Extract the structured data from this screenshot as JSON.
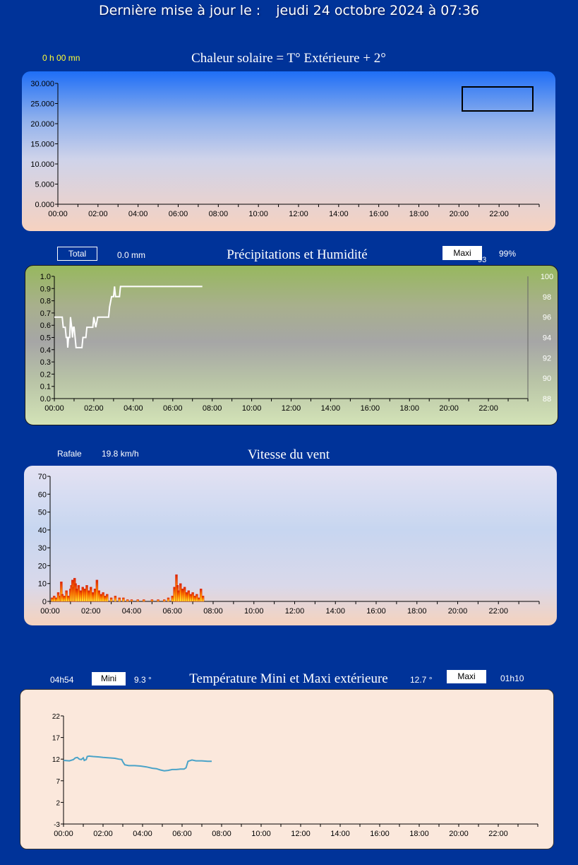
{
  "header": {
    "label": "Dernière mise à jour le :",
    "datetime": "jeudi 24 octobre 2024 à 07:36"
  },
  "solar": {
    "sunshine_duration": "0 h 00 mn"
  },
  "precip": {
    "total_label": "Total",
    "total_value": "0.0 mm",
    "maxi_label": "Maxi",
    "maxi_overlap": "93",
    "maxi_value": "99%"
  },
  "wind": {
    "gust_label": "Rafale",
    "gust_value": "19.8 km/h"
  },
  "temp": {
    "min_time": "04h54",
    "min_label": "Mini",
    "min_value": "9.3 °",
    "max_value": "12.7 °",
    "max_label": "Maxi",
    "max_time": "01h10"
  },
  "chart_data": [
    {
      "type": "line",
      "title": "Chaleur solaire = T° Extérieure + 2°",
      "x_ticks": [
        "00:00",
        "02:00",
        "04:00",
        "06:00",
        "08:00",
        "10:00",
        "12:00",
        "14:00",
        "16:00",
        "18:00",
        "20:00",
        "22:00"
      ],
      "y_ticks": [
        "0.000",
        "5.000",
        "10.000",
        "15.000",
        "20.000",
        "25.000",
        "30.000"
      ],
      "ylim": [
        0,
        30
      ],
      "series": [],
      "legend_box": "top-right",
      "colors": {
        "gradient_top": "#1e6ef7",
        "gradient_bottom": "#f6d2c0"
      }
    },
    {
      "type": "line",
      "title": "Précipitations et Humidité",
      "x_ticks": [
        "00:00",
        "02:00",
        "04:00",
        "06:00",
        "08:00",
        "10:00",
        "12:00",
        "14:00",
        "16:00",
        "18:00",
        "20:00",
        "22:00"
      ],
      "y_ticks": [
        "0.0",
        "0.1",
        "0.2",
        "0.3",
        "0.4",
        "0.5",
        "0.6",
        "0.7",
        "0.8",
        "0.9",
        "1.0"
      ],
      "ylim": [
        0,
        1
      ],
      "y2_ticks": [
        "88",
        "90",
        "92",
        "94",
        "96",
        "98",
        "100"
      ],
      "y2lim": [
        88,
        100
      ],
      "series": [
        {
          "axis": "right",
          "color": "#ffffff",
          "points": [
            [
              0,
              96
            ],
            [
              0.4,
              96
            ],
            [
              0.45,
              95
            ],
            [
              0.55,
              95
            ],
            [
              0.6,
              94
            ],
            [
              0.65,
              94
            ],
            [
              0.68,
              93
            ],
            [
              0.72,
              94
            ],
            [
              0.78,
              94
            ],
            [
              0.82,
              96
            ],
            [
              0.88,
              95
            ],
            [
              0.92,
              94
            ],
            [
              0.96,
              95
            ],
            [
              1.0,
              95
            ],
            [
              1.05,
              94
            ],
            [
              1.1,
              93
            ],
            [
              1.4,
              93
            ],
            [
              1.45,
              94
            ],
            [
              1.6,
              94
            ],
            [
              1.65,
              95
            ],
            [
              1.95,
              95
            ],
            [
              2.0,
              96
            ],
            [
              2.1,
              95
            ],
            [
              2.2,
              96
            ],
            [
              2.75,
              96
            ],
            [
              2.8,
              97
            ],
            [
              2.9,
              98
            ],
            [
              3.0,
              98
            ],
            [
              3.05,
              99
            ],
            [
              3.1,
              98
            ],
            [
              3.3,
              98
            ],
            [
              3.35,
              99
            ],
            [
              7.5,
              99
            ]
          ]
        }
      ]
    },
    {
      "type": "bar",
      "title": "Vitesse du vent",
      "x_ticks": [
        "00:00",
        "02:00",
        "04:00",
        "06:00",
        "08:00",
        "10:00",
        "12:00",
        "14:00",
        "16:00",
        "18:00",
        "20:00",
        "22:00"
      ],
      "y_ticks": [
        "0",
        "10",
        "20",
        "30",
        "40",
        "50",
        "60",
        "70"
      ],
      "ylim": [
        0,
        70
      ],
      "series": [
        {
          "name": "",
          "color": "#dd2200",
          "points": [
            [
              0.1,
              2
            ],
            [
              0.2,
              3
            ],
            [
              0.3,
              2
            ],
            [
              0.4,
              5
            ],
            [
              0.5,
              3
            ],
            [
              0.55,
              11
            ],
            [
              0.6,
              4
            ],
            [
              0.7,
              3
            ],
            [
              0.8,
              6
            ],
            [
              0.9,
              3
            ],
            [
              1.0,
              7
            ],
            [
              1.05,
              9
            ],
            [
              1.1,
              12
            ],
            [
              1.15,
              8
            ],
            [
              1.2,
              13
            ],
            [
              1.25,
              10
            ],
            [
              1.3,
              7
            ],
            [
              1.4,
              9
            ],
            [
              1.5,
              6
            ],
            [
              1.6,
              8
            ],
            [
              1.7,
              7
            ],
            [
              1.8,
              9
            ],
            [
              1.9,
              6
            ],
            [
              2.0,
              8
            ],
            [
              2.1,
              5
            ],
            [
              2.2,
              7
            ],
            [
              2.3,
              12
            ],
            [
              2.4,
              6
            ],
            [
              2.5,
              4
            ],
            [
              2.6,
              5
            ],
            [
              2.7,
              3
            ],
            [
              2.8,
              4
            ],
            [
              3.0,
              2
            ],
            [
              3.2,
              3
            ],
            [
              3.4,
              2
            ],
            [
              3.6,
              2
            ],
            [
              3.8,
              1
            ],
            [
              4.0,
              1
            ],
            [
              4.3,
              1
            ],
            [
              4.6,
              1
            ],
            [
              5.0,
              1
            ],
            [
              5.3,
              1
            ],
            [
              5.6,
              1
            ],
            [
              5.8,
              2
            ],
            [
              6.0,
              3
            ],
            [
              6.1,
              8
            ],
            [
              6.2,
              15
            ],
            [
              6.25,
              9
            ],
            [
              6.3,
              6
            ],
            [
              6.4,
              10
            ],
            [
              6.5,
              7
            ],
            [
              6.6,
              8
            ],
            [
              6.7,
              5
            ],
            [
              6.8,
              6
            ],
            [
              6.9,
              4
            ],
            [
              7.0,
              5
            ],
            [
              7.1,
              3
            ],
            [
              7.2,
              4
            ],
            [
              7.3,
              2
            ],
            [
              7.4,
              7
            ],
            [
              7.5,
              3
            ]
          ]
        }
      ]
    },
    {
      "type": "line",
      "title": "Température Mini et Maxi extérieure",
      "x_ticks": [
        "00:00",
        "02:00",
        "04:00",
        "06:00",
        "08:00",
        "10:00",
        "12:00",
        "14:00",
        "16:00",
        "18:00",
        "20:00",
        "22:00"
      ],
      "y_ticks": [
        "-3",
        "2",
        "7",
        "12",
        "17",
        "22"
      ],
      "ylim": [
        -3,
        22
      ],
      "series": [
        {
          "name": "",
          "color": "#4aa3c8",
          "points": [
            [
              0,
              11.7
            ],
            [
              0.3,
              11.6
            ],
            [
              0.5,
              11.9
            ],
            [
              0.6,
              12.3
            ],
            [
              0.7,
              12.4
            ],
            [
              0.8,
              12.0
            ],
            [
              0.9,
              11.9
            ],
            [
              1.0,
              12.3
            ],
            [
              1.05,
              11.7
            ],
            [
              1.15,
              11.9
            ],
            [
              1.2,
              12.6
            ],
            [
              1.3,
              12.7
            ],
            [
              1.5,
              12.6
            ],
            [
              1.8,
              12.5
            ],
            [
              2.0,
              12.4
            ],
            [
              2.3,
              12.3
            ],
            [
              2.6,
              12.2
            ],
            [
              2.8,
              12.0
            ],
            [
              2.95,
              11.9
            ],
            [
              3.0,
              11.4
            ],
            [
              3.1,
              10.7
            ],
            [
              3.3,
              10.5
            ],
            [
              3.6,
              10.5
            ],
            [
              3.9,
              10.4
            ],
            [
              4.2,
              10.2
            ],
            [
              4.5,
              9.9
            ],
            [
              4.7,
              9.8
            ],
            [
              4.9,
              9.5
            ],
            [
              5.1,
              9.3
            ],
            [
              5.3,
              9.4
            ],
            [
              5.5,
              9.6
            ],
            [
              5.7,
              9.6
            ],
            [
              5.9,
              9.7
            ],
            [
              6.1,
              9.7
            ],
            [
              6.2,
              10.0
            ],
            [
              6.3,
              11.5
            ],
            [
              6.5,
              11.8
            ],
            [
              6.7,
              11.6
            ],
            [
              7.0,
              11.6
            ],
            [
              7.3,
              11.5
            ],
            [
              7.5,
              11.5
            ]
          ]
        }
      ]
    }
  ]
}
